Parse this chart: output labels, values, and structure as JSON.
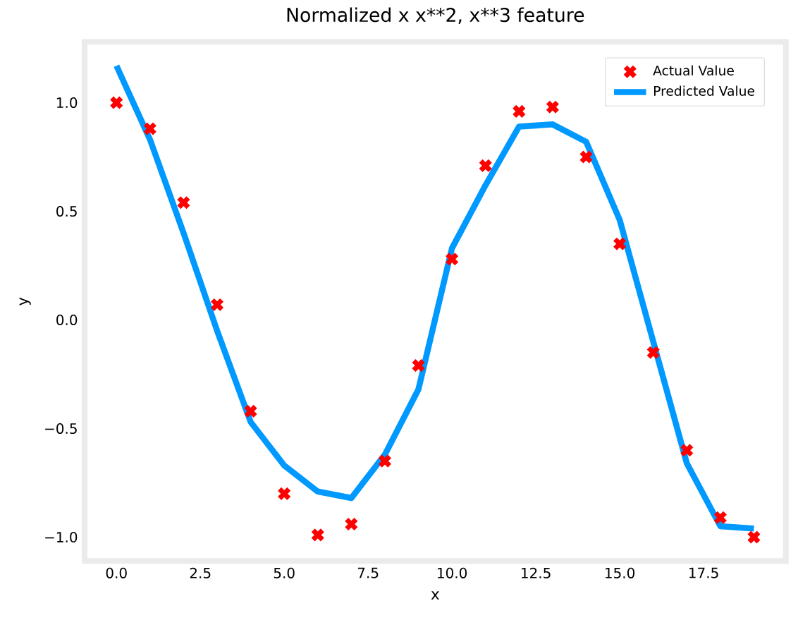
{
  "chart_data": {
    "type": "line",
    "title": "Normalized x x**2, x**3 feature",
    "xlabel": "x",
    "ylabel": "y",
    "x": [
      0,
      1,
      2,
      3,
      4,
      5,
      6,
      7,
      8,
      9,
      10,
      11,
      12,
      13,
      14,
      15,
      16,
      17,
      18,
      19
    ],
    "series": [
      {
        "name": "Actual Value",
        "type": "scatter",
        "color": "#ff0000",
        "marker": "cross",
        "values": [
          1.0,
          0.88,
          0.54,
          0.07,
          -0.42,
          -0.8,
          -0.99,
          -0.94,
          -0.65,
          -0.21,
          0.28,
          0.71,
          0.96,
          0.98,
          0.75,
          0.35,
          -0.15,
          -0.6,
          -0.91,
          -1.0
        ]
      },
      {
        "name": "Predicted Value",
        "color": "#0099ff",
        "values": [
          1.17,
          0.83,
          0.4,
          -0.05,
          -0.47,
          -0.67,
          -0.79,
          -0.82,
          -0.62,
          -0.32,
          0.33,
          0.62,
          0.89,
          0.9,
          0.82,
          0.46,
          -0.1,
          -0.66,
          -0.95,
          -0.96
        ]
      }
    ],
    "xlim": [
      -0.95,
      19.95
    ],
    "ylim": [
      -1.11,
      1.28
    ],
    "xticks": [
      {
        "value": 0,
        "label": "0.0"
      },
      {
        "value": 2.5,
        "label": "2.5"
      },
      {
        "value": 5,
        "label": "5.0"
      },
      {
        "value": 7.5,
        "label": "7.5"
      },
      {
        "value": 10,
        "label": "10.0"
      },
      {
        "value": 12.5,
        "label": "12.5"
      },
      {
        "value": 15,
        "label": "15.0"
      },
      {
        "value": 17.5,
        "label": "17.5"
      }
    ],
    "yticks": [
      {
        "value": -1,
        "label": "−1.0"
      },
      {
        "value": -0.5,
        "label": "−0.5"
      },
      {
        "value": 0,
        "label": "0.0"
      },
      {
        "value": 0.5,
        "label": "0.5"
      },
      {
        "value": 1,
        "label": "1.0"
      }
    ],
    "legend": "top right",
    "grid": false
  }
}
